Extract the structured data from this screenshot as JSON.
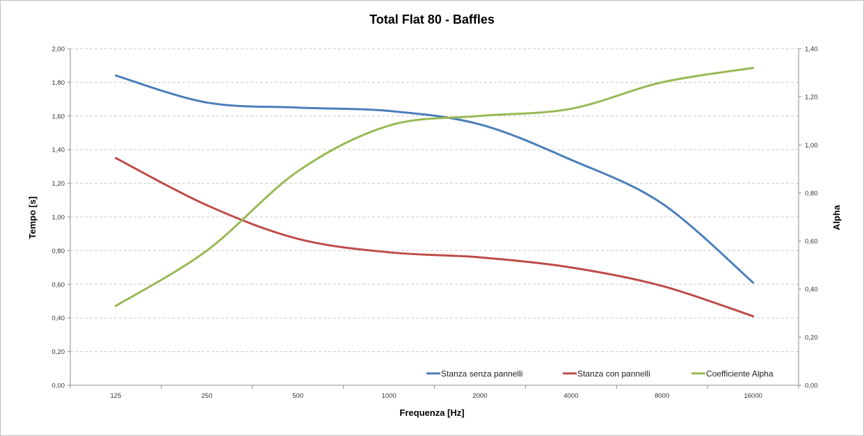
{
  "chart_data": {
    "type": "line",
    "title": "Total Flat 80 - Baffles",
    "xlabel": "Frequenza [Hz]",
    "ylabel": "Tempo [s]",
    "y2label": "Alpha",
    "categories": [
      "125",
      "250",
      "500",
      "1000",
      "2000",
      "4000",
      "8000",
      "16000"
    ],
    "ylim": [
      0,
      2.0
    ],
    "y2lim": [
      0,
      1.4
    ],
    "yticks": [
      "0,00",
      "0,20",
      "0,40",
      "0,60",
      "0,80",
      "1,00",
      "1,20",
      "1,40",
      "1,60",
      "1,80",
      "2,00"
    ],
    "y2ticks": [
      "0,00",
      "0,20",
      "0,40",
      "0,60",
      "0,80",
      "1,00",
      "1,20",
      "1,40"
    ],
    "grid": true,
    "legend_position": "bottom-right",
    "series": [
      {
        "name": "Stanza senza pannelli",
        "axis": "left",
        "color": "#4a7ebb",
        "values": [
          1.84,
          1.68,
          1.65,
          1.63,
          1.55,
          1.34,
          1.08,
          0.61
        ]
      },
      {
        "name": "Stanza con pannelli",
        "axis": "left",
        "color": "#be4b48",
        "values": [
          1.35,
          1.07,
          0.87,
          0.79,
          0.76,
          0.7,
          0.59,
          0.41
        ]
      },
      {
        "name": "Coefficiente Alpha",
        "axis": "right",
        "color": "#98b954",
        "values": [
          0.33,
          0.56,
          0.89,
          1.08,
          1.12,
          1.15,
          1.26,
          1.32
        ]
      }
    ]
  }
}
